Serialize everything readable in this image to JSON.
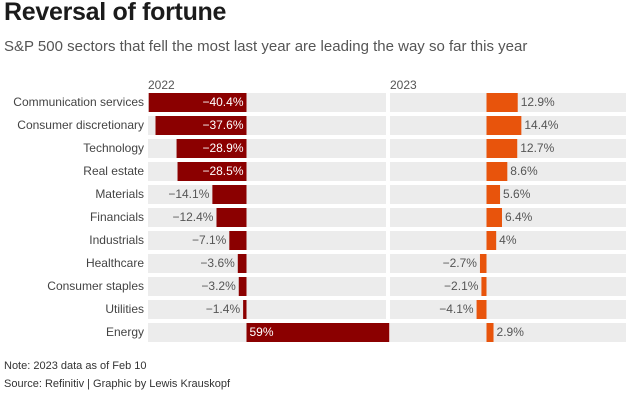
{
  "title": "Reversal of fortune",
  "subtitle": "S&P 500 sectors that fell the most last year are leading the way so far this year",
  "note": "Note: 2023 data as of Feb 10",
  "source": "Source: Refinitiv | Graphic by Lewis Krauskopf",
  "colors": {
    "y2022": "#8b0000",
    "y2023": "#e8540c",
    "track": "#ececec",
    "label": "#555555"
  },
  "chart_data": {
    "type": "bar",
    "title": "Reversal of fortune",
    "subtitle": "S&P 500 sectors that fell the most last year are leading the way so far this year",
    "xlabel": "",
    "ylabel": "",
    "categories": [
      "Communication services",
      "Consumer discretionary",
      "Technology",
      "Real estate",
      "Materials",
      "Financials",
      "Industrials",
      "Healthcare",
      "Consumer staples",
      "Utilities",
      "Energy"
    ],
    "series": [
      {
        "name": "2022",
        "values": [
          -40.4,
          -37.6,
          -28.9,
          -28.5,
          -14.1,
          -12.4,
          -7.1,
          -3.6,
          -3.2,
          -1.4,
          59
        ],
        "labels": [
          "−40.4%",
          "−37.6%",
          "−28.9%",
          "−28.5%",
          "−14.1%",
          "−12.4%",
          "−7.1%",
          "−3.6%",
          "−3.2%",
          "−1.4%",
          "59%"
        ]
      },
      {
        "name": "2023",
        "values": [
          12.9,
          14.4,
          12.7,
          8.6,
          5.6,
          6.4,
          4,
          -2.7,
          -2.1,
          -4.1,
          2.9
        ],
        "labels": [
          "12.9%",
          "14.4%",
          "12.7%",
          "8.6%",
          "5.6%",
          "6.4%",
          "4%",
          "−2.7%",
          "−2.1%",
          "−4.1%",
          "2.9%"
        ]
      }
    ]
  }
}
